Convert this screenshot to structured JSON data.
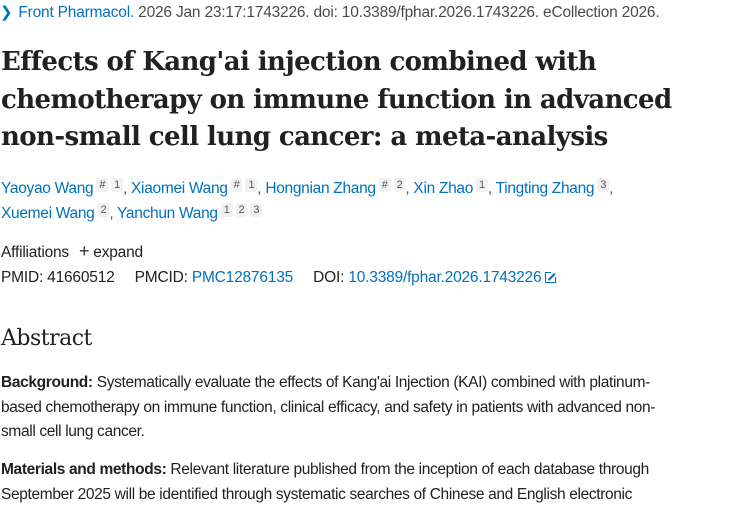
{
  "citation": {
    "journal": "Front Pharmacol.",
    "details": " 2026 Jan 23:17:1743226. doi: 10.3389/fphar.2026.1743226. eCollection 2026."
  },
  "title_lines": [
    "Effects of Kang'ai injection combined with",
    "chemotherapy on immune function in advanced",
    "non-small cell lung cancer: a meta-analysis"
  ],
  "authors": [
    {
      "name": "Yaoyao Wang",
      "marks": [
        "#",
        "1"
      ]
    },
    {
      "name": "Xiaomei Wang",
      "marks": [
        "#",
        "1"
      ]
    },
    {
      "name": "Hongnian Zhang",
      "marks": [
        "#",
        "2"
      ]
    },
    {
      "name": "Xin Zhao",
      "marks": [
        "1"
      ]
    },
    {
      "name": "Tingting Zhang",
      "marks": [
        "3"
      ]
    },
    {
      "name": "Xuemei Wang",
      "marks": [
        "2"
      ]
    },
    {
      "name": "Yanchun Wang",
      "marks": [
        "1",
        "2",
        "3"
      ]
    }
  ],
  "affiliations": {
    "label": "Affiliations",
    "expand": "expand"
  },
  "ids": {
    "pmid_label": "PMID:",
    "pmid": "41660512",
    "pmcid_label": "PMCID:",
    "pmcid": "PMC12876135",
    "doi_label": "DOI:",
    "doi": "10.3389/fphar.2026.1743226"
  },
  "abstract": {
    "heading": "Abstract",
    "background": {
      "label": "Background:",
      "lines": [
        " Systematically evaluate the effects of Kang'ai Injection (KAI) combined with platinum-",
        "based chemotherapy on immune function, clinical efficacy, and safety in patients with advanced non-",
        "small cell lung cancer."
      ]
    },
    "methods": {
      "label": "Materials and methods:",
      "lines": [
        " Relevant literature published from the inception of each database through",
        "September 2025 will be identified through systematic searches of Chinese and English electronic"
      ]
    }
  },
  "colors": {
    "link": "#0071bc",
    "text": "#212121"
  }
}
